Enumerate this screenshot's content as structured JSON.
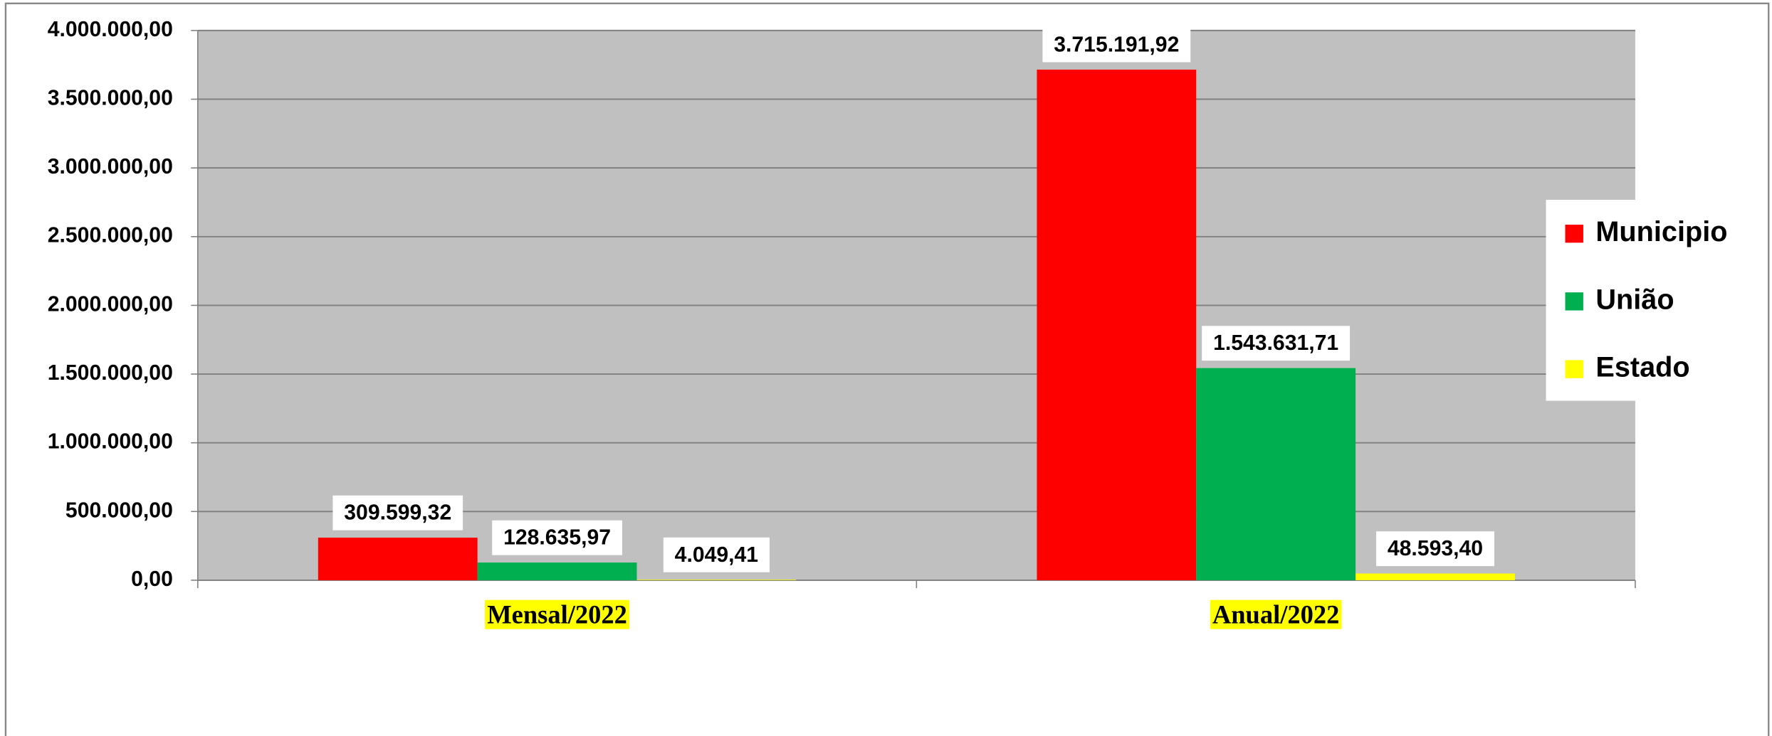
{
  "chart_data": {
    "type": "bar",
    "categories": [
      "Mensal/2022",
      "Anual/2022"
    ],
    "series": [
      {
        "name": "Municipio",
        "color": "#ff0000",
        "values": [
          309599.32,
          3715191.92
        ],
        "value_labels": [
          "309.599,32",
          "3.715.191,92"
        ]
      },
      {
        "name": "União",
        "color": "#00b050",
        "values": [
          128635.97,
          1543631.71
        ],
        "value_labels": [
          "128.635,97",
          "1.543.631,71"
        ]
      },
      {
        "name": "Estado",
        "color": "#ffff00",
        "values": [
          4049.41,
          48593.4
        ],
        "value_labels": [
          "4.049,41",
          "48.593,40"
        ]
      }
    ],
    "ylim": [
      0,
      4000000
    ],
    "yticks": [
      {
        "value": 0,
        "label": "0,00"
      },
      {
        "value": 500000,
        "label": "500.000,00"
      },
      {
        "value": 1000000,
        "label": "1.000.000,00"
      },
      {
        "value": 1500000,
        "label": "1.500.000,00"
      },
      {
        "value": 2000000,
        "label": "2.000.000,00"
      },
      {
        "value": 2500000,
        "label": "2.500.000,00"
      },
      {
        "value": 3000000,
        "label": "3.000.000,00"
      },
      {
        "value": 3500000,
        "label": "3.500.000,00"
      },
      {
        "value": 4000000,
        "label": "4.000.000,00"
      }
    ],
    "grid": true,
    "legend": "right"
  }
}
